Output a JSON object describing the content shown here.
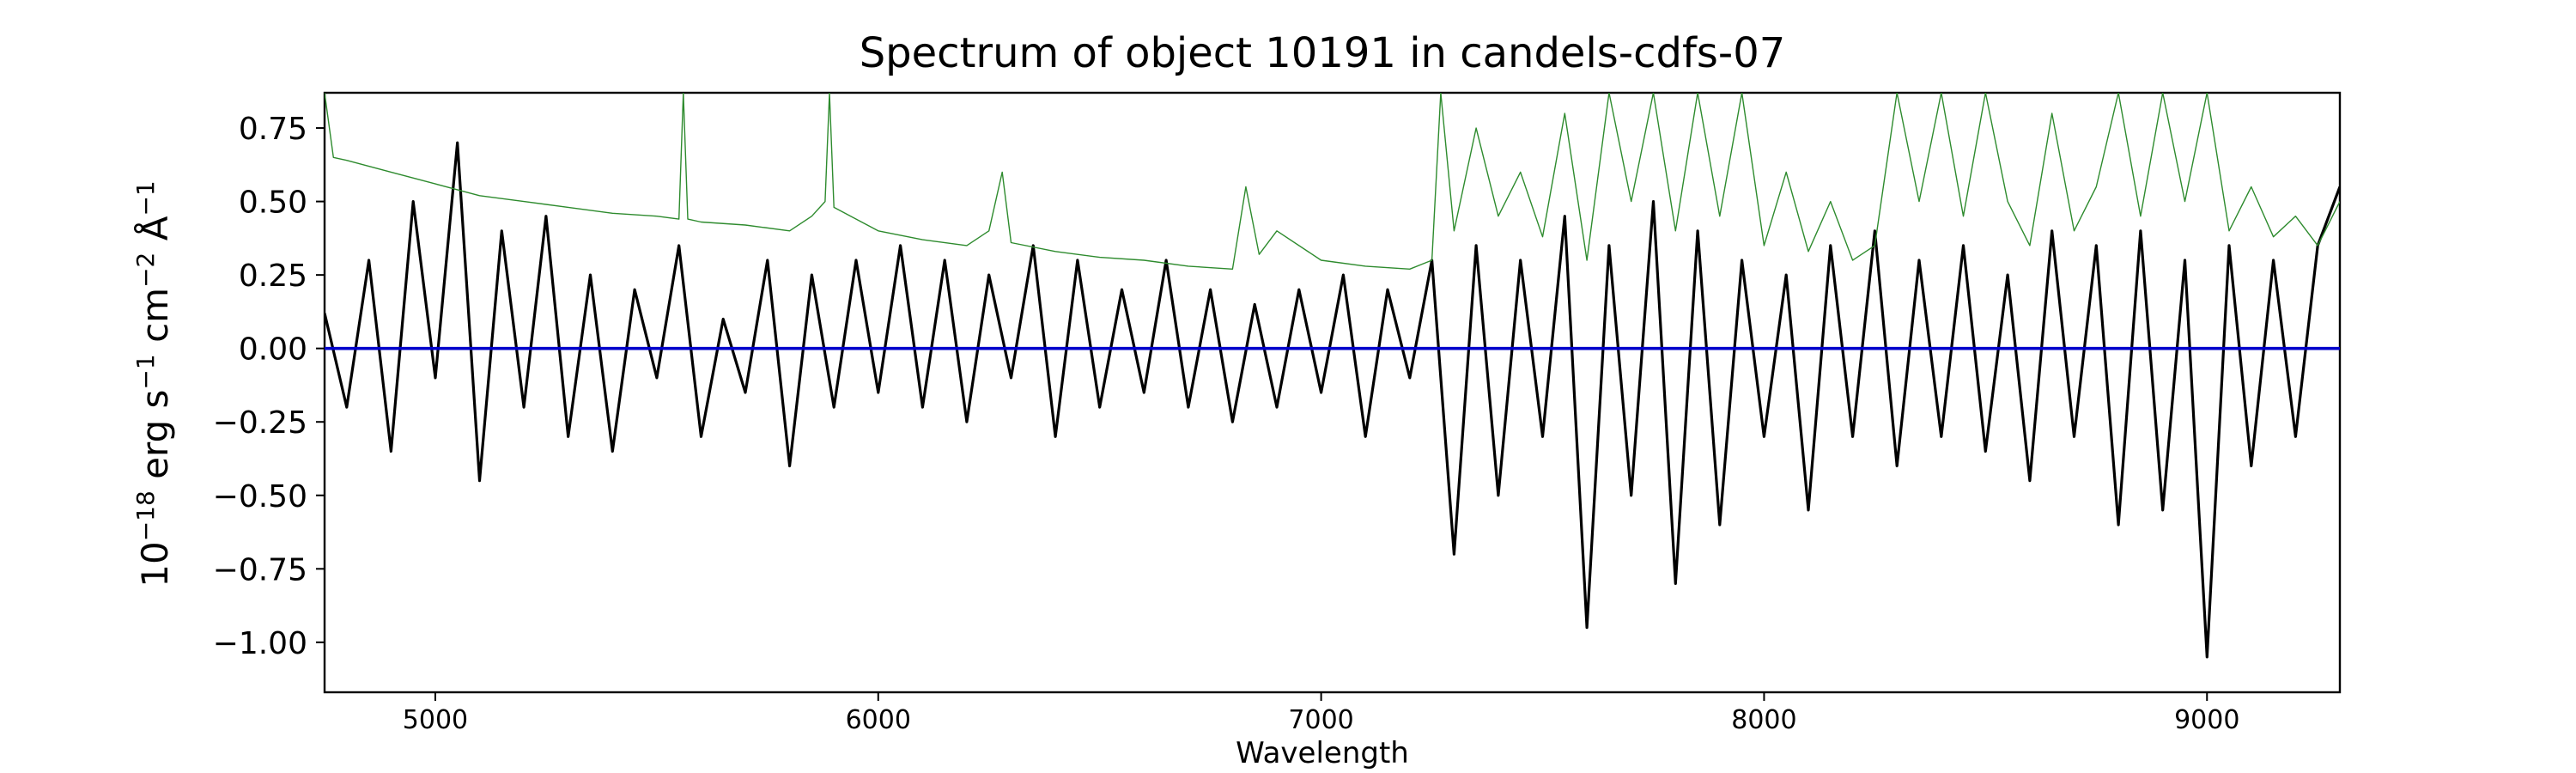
{
  "chart_data": {
    "type": "line",
    "title": "Spectrum of object 10191 in candels-cdfs-07",
    "xlabel": "Wavelength",
    "ylabel_base": "10",
    "ylabel_exp": "−18",
    "ylabel_unit1": " erg s",
    "ylabel_exp1": "−1",
    "ylabel_unit2": " cm",
    "ylabel_exp2": "−2",
    "ylabel_unit3": " Å",
    "ylabel_exp3": "−1",
    "xlim": [
      4750,
      9300
    ],
    "ylim": [
      -1.17,
      0.87
    ],
    "x_ticks": [
      5000,
      6000,
      7000,
      8000,
      9000
    ],
    "x_tick_labels": [
      "5000",
      "6000",
      "7000",
      "8000",
      "9000"
    ],
    "y_ticks": [
      -1.0,
      -0.75,
      -0.5,
      -0.25,
      0.0,
      0.25,
      0.5,
      0.75
    ],
    "y_tick_labels": [
      "−1.00",
      "−0.75",
      "−0.50",
      "−0.25",
      "0.00",
      "0.25",
      "0.50",
      "0.75"
    ],
    "grid": false,
    "legend": "none",
    "series": [
      {
        "role": "flux",
        "color": "#000000",
        "x": [
          4750,
          4800,
          4850,
          4900,
          4950,
          5000,
          5050,
          5100,
          5150,
          5200,
          5250,
          5300,
          5350,
          5400,
          5450,
          5500,
          5550,
          5600,
          5650,
          5700,
          5750,
          5800,
          5850,
          5900,
          5950,
          6000,
          6050,
          6100,
          6150,
          6200,
          6250,
          6300,
          6350,
          6400,
          6450,
          6500,
          6550,
          6600,
          6650,
          6700,
          6750,
          6800,
          6850,
          6900,
          6950,
          7000,
          7050,
          7100,
          7150,
          7200,
          7250,
          7300,
          7350,
          7400,
          7450,
          7500,
          7550,
          7600,
          7650,
          7700,
          7750,
          7800,
          7850,
          7900,
          7950,
          8000,
          8050,
          8100,
          8150,
          8200,
          8250,
          8300,
          8350,
          8400,
          8450,
          8500,
          8550,
          8600,
          8650,
          8700,
          8750,
          8800,
          8850,
          8900,
          8950,
          9000,
          9050,
          9100,
          9150,
          9200,
          9250,
          9300
        ],
        "y": [
          0.12,
          -0.2,
          0.3,
          -0.35,
          0.5,
          -0.1,
          0.7,
          -0.45,
          0.4,
          -0.2,
          0.45,
          -0.3,
          0.25,
          -0.35,
          0.2,
          -0.1,
          0.35,
          -0.3,
          0.1,
          -0.15,
          0.3,
          -0.4,
          0.25,
          -0.2,
          0.3,
          -0.15,
          0.35,
          -0.2,
          0.3,
          -0.25,
          0.25,
          -0.1,
          0.35,
          -0.3,
          0.3,
          -0.2,
          0.2,
          -0.15,
          0.3,
          -0.2,
          0.2,
          -0.25,
          0.15,
          -0.2,
          0.2,
          -0.15,
          0.25,
          -0.3,
          0.2,
          -0.1,
          0.3,
          -0.7,
          0.35,
          -0.5,
          0.3,
          -0.3,
          0.45,
          -0.95,
          0.35,
          -0.5,
          0.5,
          -0.8,
          0.4,
          -0.6,
          0.3,
          -0.3,
          0.25,
          -0.55,
          0.35,
          -0.3,
          0.4,
          -0.4,
          0.3,
          -0.3,
          0.35,
          -0.35,
          0.25,
          -0.45,
          0.4,
          -0.3,
          0.35,
          -0.6,
          0.4,
          -0.55,
          0.3,
          -1.05,
          0.35,
          -0.4,
          0.3,
          -0.3,
          0.35,
          0.55
        ]
      },
      {
        "role": "error",
        "color": "#2e8b2e",
        "x": [
          4750,
          4770,
          4800,
          4900,
          5000,
          5100,
          5200,
          5300,
          5400,
          5500,
          5550,
          5560,
          5570,
          5600,
          5700,
          5800,
          5850,
          5880,
          5890,
          5900,
          6000,
          6100,
          6200,
          6250,
          6280,
          6300,
          6400,
          6500,
          6600,
          6700,
          6800,
          6830,
          6860,
          6900,
          7000,
          7100,
          7200,
          7250,
          7270,
          7300,
          7350,
          7400,
          7450,
          7500,
          7550,
          7600,
          7650,
          7700,
          7750,
          7800,
          7850,
          7900,
          7950,
          8000,
          8050,
          8100,
          8150,
          8200,
          8250,
          8300,
          8350,
          8400,
          8450,
          8500,
          8550,
          8600,
          8650,
          8700,
          8750,
          8800,
          8850,
          8900,
          8950,
          9000,
          9050,
          9100,
          9150,
          9200,
          9250,
          9300
        ],
        "y": [
          0.87,
          0.65,
          0.64,
          0.6,
          0.56,
          0.52,
          0.5,
          0.48,
          0.46,
          0.45,
          0.44,
          0.87,
          0.44,
          0.43,
          0.42,
          0.4,
          0.45,
          0.5,
          0.87,
          0.48,
          0.4,
          0.37,
          0.35,
          0.4,
          0.6,
          0.36,
          0.33,
          0.31,
          0.3,
          0.28,
          0.27,
          0.55,
          0.32,
          0.4,
          0.3,
          0.28,
          0.27,
          0.3,
          0.87,
          0.4,
          0.75,
          0.45,
          0.6,
          0.38,
          0.8,
          0.3,
          0.87,
          0.5,
          0.87,
          0.4,
          0.87,
          0.45,
          0.87,
          0.35,
          0.6,
          0.33,
          0.5,
          0.3,
          0.35,
          0.87,
          0.5,
          0.87,
          0.45,
          0.87,
          0.5,
          0.35,
          0.8,
          0.4,
          0.55,
          0.87,
          0.45,
          0.87,
          0.5,
          0.87,
          0.4,
          0.55,
          0.38,
          0.45,
          0.35,
          0.5
        ]
      },
      {
        "role": "zero",
        "color": "#0000cc",
        "x": [
          4750,
          9300
        ],
        "y": [
          0.0,
          0.0
        ]
      }
    ]
  }
}
